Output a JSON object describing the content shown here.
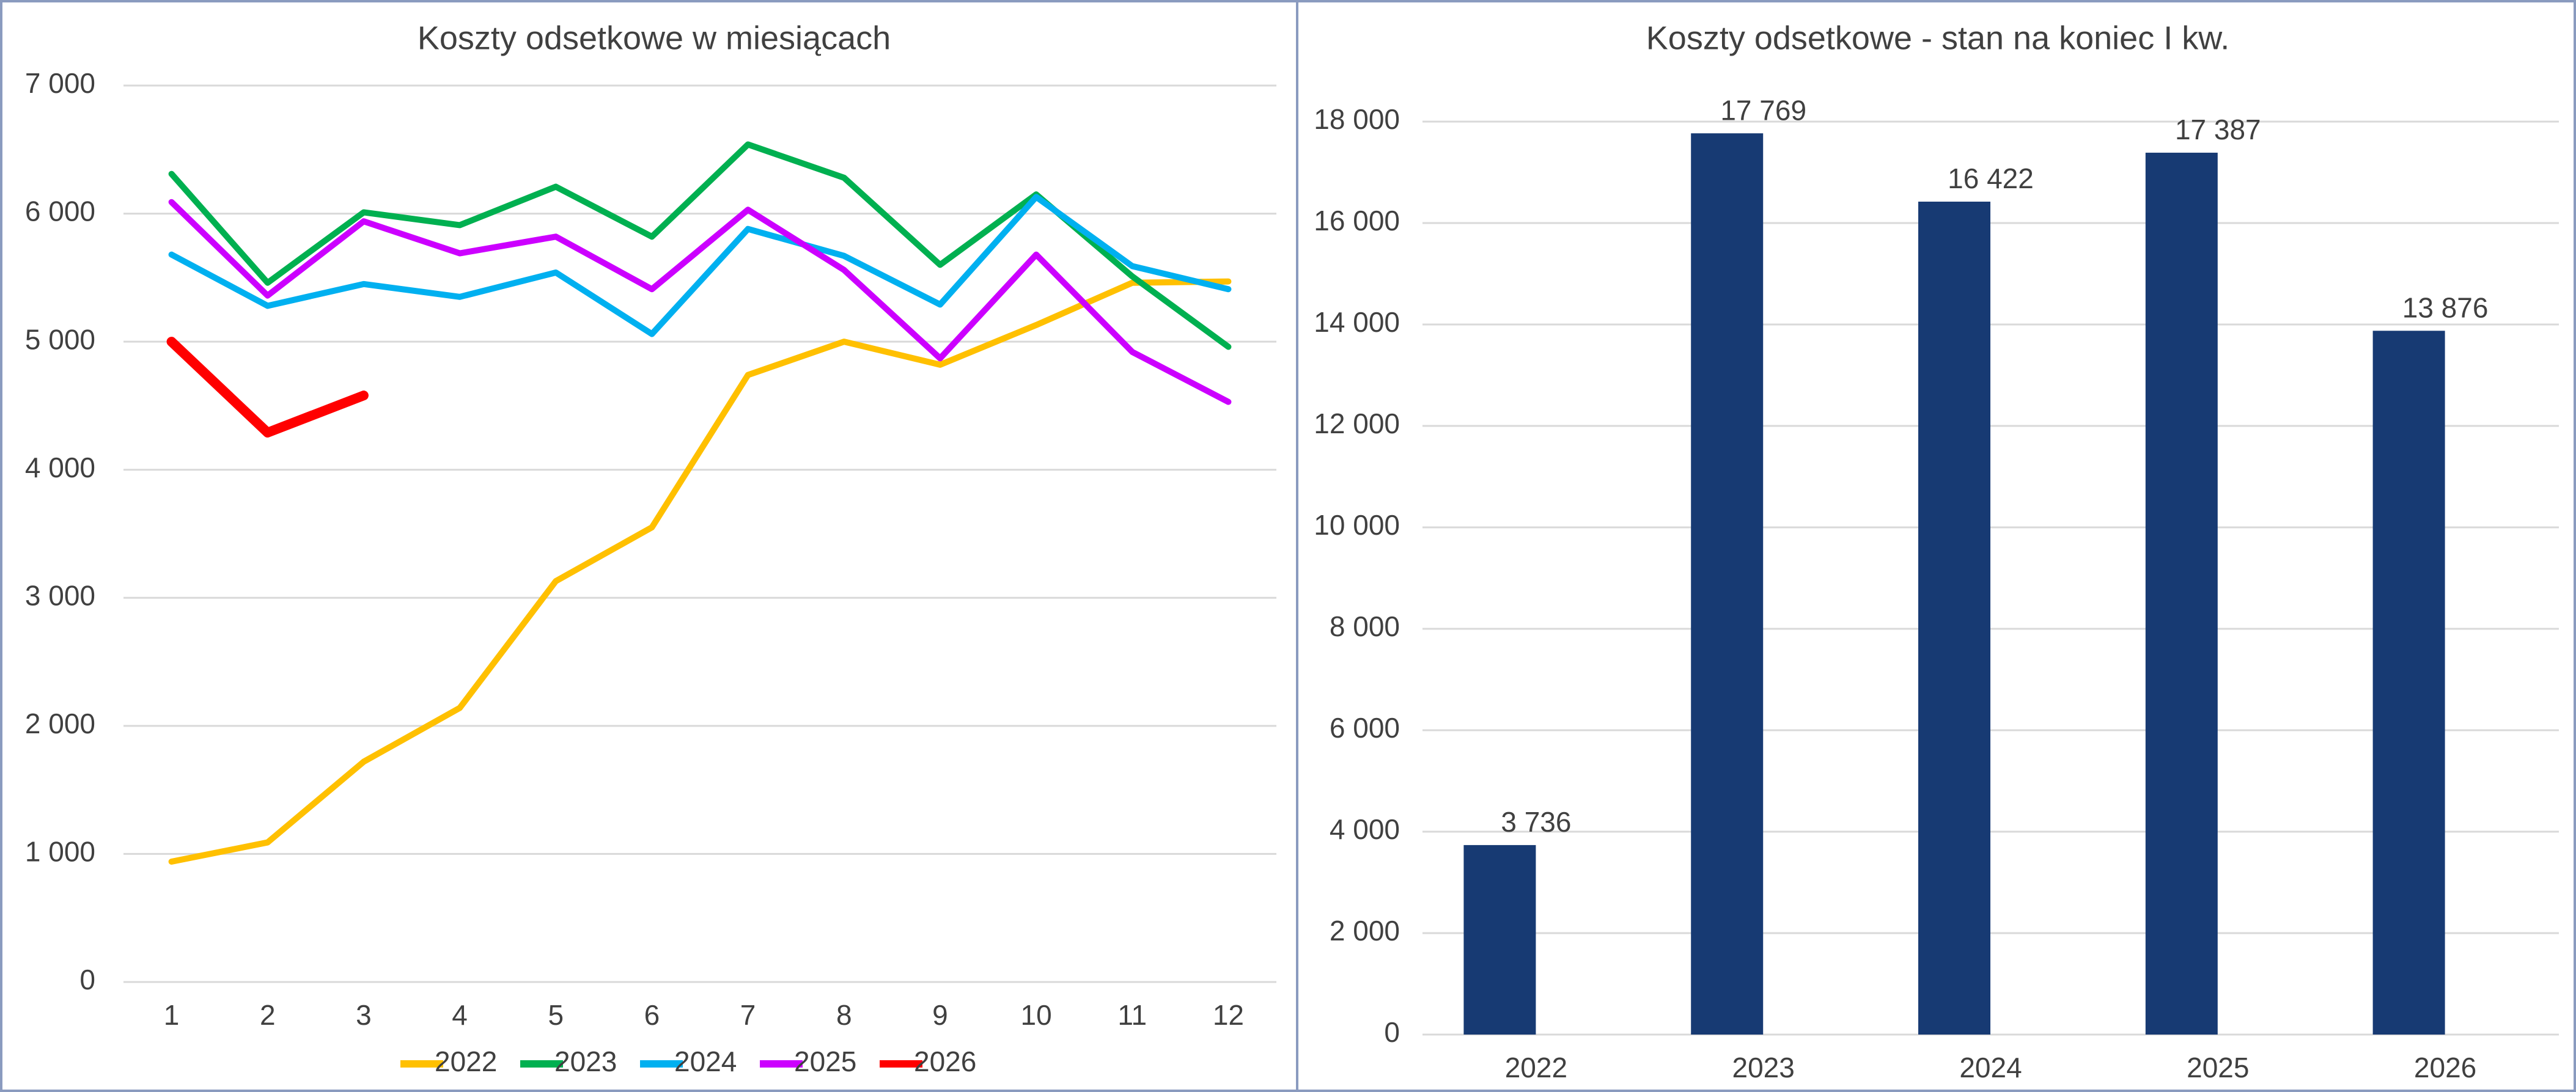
{
  "chart_data": [
    {
      "type": "line",
      "title": "Koszty odsetkowe w miesiącach",
      "categories": [
        1,
        2,
        3,
        4,
        5,
        6,
        7,
        8,
        9,
        10,
        11,
        12
      ],
      "series": [
        {
          "name": "2022",
          "color": "#FFC000",
          "line_width": 10,
          "values": [
            940,
            1090,
            1720,
            2140,
            3130,
            3550,
            4740,
            5000,
            4820,
            5130,
            5460,
            5470
          ]
        },
        {
          "name": "2023",
          "color": "#00B050",
          "line_width": 10,
          "values": [
            6310,
            5460,
            6010,
            5910,
            6210,
            5820,
            6540,
            6280,
            5600,
            6150,
            5510,
            4960
          ]
        },
        {
          "name": "2024",
          "color": "#00B0F0",
          "line_width": 10,
          "values": [
            5680,
            5280,
            5450,
            5350,
            5540,
            5060,
            5880,
            5670,
            5290,
            6130,
            5590,
            5410
          ]
        },
        {
          "name": "2025",
          "color": "#CC00FF",
          "line_width": 10,
          "values": [
            6090,
            5360,
            5940,
            5690,
            5820,
            5410,
            6030,
            5560,
            4870,
            5680,
            4920,
            4530
          ]
        },
        {
          "name": "2026",
          "color": "#FF0000",
          "line_width": 16,
          "values": [
            5000,
            4290,
            4580,
            null,
            null,
            null,
            null,
            null,
            null,
            null,
            null,
            null
          ]
        }
      ],
      "ylim": [
        0,
        7000
      ],
      "yticks": [
        0,
        {
          "value": 1000,
          "label": "1 000"
        },
        {
          "value": 2000,
          "label": "2 000"
        },
        {
          "value": 3000,
          "label": "3 000"
        },
        {
          "value": 4000,
          "label": "4 000"
        },
        {
          "value": 5000,
          "label": "5 000"
        },
        {
          "value": 6000,
          "label": "6 000"
        },
        {
          "value": 7000,
          "label": "7 000"
        }
      ],
      "grid": true,
      "legend": "bottom"
    },
    {
      "type": "bar",
      "title": "Koszty odsetkowe - stan na koniec I kw.",
      "categories": [
        "2022",
        "2023",
        "2024",
        "2025",
        "2026"
      ],
      "values": [
        3736,
        17769,
        16422,
        17387,
        13876
      ],
      "value_labels": [
        "3 736",
        "17 769",
        "16 422",
        "17 387",
        "13 876"
      ],
      "color": "#173A73",
      "ylim": [
        0,
        18000
      ],
      "yticks": [
        0,
        {
          "value": 2000,
          "label": "2 000"
        },
        {
          "value": 4000,
          "label": "4 000"
        },
        {
          "value": 6000,
          "label": "6 000"
        },
        {
          "value": 8000,
          "label": "8 000"
        },
        {
          "value": 10000,
          "label": "10 000"
        },
        {
          "value": 12000,
          "label": "12 000"
        },
        {
          "value": 14000,
          "label": "14 000"
        },
        {
          "value": 16000,
          "label": "16 000"
        },
        {
          "value": 18000,
          "label": "18 000"
        }
      ],
      "grid": true
    }
  ]
}
